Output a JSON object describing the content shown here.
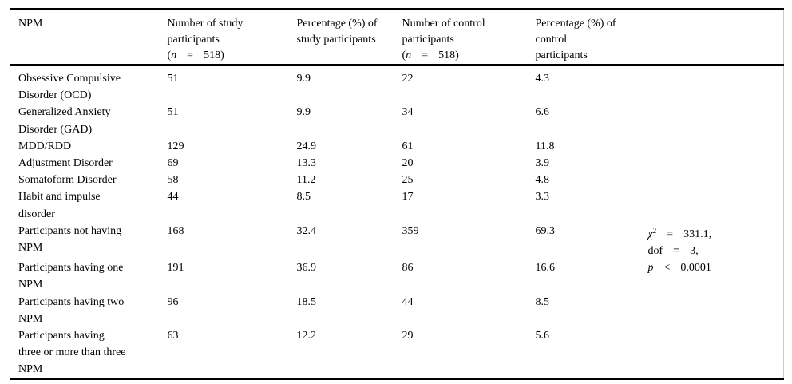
{
  "colors": {
    "background": "#ffffff",
    "text": "#000000",
    "rule": "#000000",
    "side_border": "#cccccc"
  },
  "table": {
    "columns": [
      {
        "id": "npm",
        "lines": [
          "NPM"
        ]
      },
      {
        "id": "study-n",
        "lines": [
          "Number of study",
          "participants",
          [
            {
              "t": "("
            },
            {
              "t": "n",
              "s": "i"
            },
            {
              "t": "=",
              "s": "gap"
            },
            {
              "t": "518)"
            }
          ]
        ]
      },
      {
        "id": "study-pct",
        "lines": [
          "Percentage (%) of",
          "study participants"
        ]
      },
      {
        "id": "control-n",
        "lines": [
          "Number of control",
          "participants",
          [
            {
              "t": "("
            },
            {
              "t": "n",
              "s": "i"
            },
            {
              "t": "=",
              "s": "gap"
            },
            {
              "t": "518)"
            }
          ]
        ]
      },
      {
        "id": "control-pct",
        "lines": [
          "Percentage (%) of",
          "control",
          "participants"
        ]
      },
      {
        "id": "stats",
        "lines": []
      }
    ],
    "rows": [
      {
        "cells": [
          [
            "Obsessive Compulsive",
            "Disorder (OCD)"
          ],
          "51",
          "9.9",
          "22",
          "4.3",
          []
        ]
      },
      {
        "cells": [
          [
            "Generalized Anxiety",
            "Disorder (GAD)"
          ],
          "51",
          "9.9",
          "34",
          "6.6",
          []
        ]
      },
      {
        "cells": [
          [
            "MDD/RDD"
          ],
          "129",
          "24.9",
          "61",
          "11.8",
          []
        ]
      },
      {
        "cells": [
          [
            "Adjustment Disorder"
          ],
          "69",
          "13.3",
          "20",
          "3.9",
          []
        ]
      },
      {
        "cells": [
          [
            "Somatoform Disorder"
          ],
          "58",
          "11.2",
          "25",
          "4.8",
          []
        ]
      },
      {
        "cells": [
          [
            "Habit and impulse",
            "disorder"
          ],
          "44",
          "8.5",
          "17",
          "3.3",
          []
        ]
      },
      {
        "cells": [
          [
            "Participants not having",
            "NPM"
          ],
          "168",
          "32.4",
          "359",
          "69.3",
          [
            [
              {
                "t": "χ",
                "s": "i",
                "n": "chi-symbol"
              },
              {
                "t": "2",
                "s": "sup",
                "n": "chi-exponent"
              },
              {
                "t": "=",
                "s": "gap"
              },
              {
                "t": "331.1,"
              }
            ],
            [
              {
                "t": "dof"
              },
              {
                "t": "=",
                "s": "gap"
              },
              {
                "t": "3,"
              }
            ]
          ]
        ]
      },
      {
        "cells": [
          [
            "Participants having one",
            "NPM"
          ],
          "191",
          "36.9",
          "86",
          "16.6",
          [
            [
              {
                "t": "p",
                "s": "i",
                "n": "p-symbol"
              },
              {
                "t": "<",
                "s": "gap"
              },
              {
                "t": "0.0001"
              }
            ]
          ]
        ]
      },
      {
        "cells": [
          [
            "Participants having two",
            "NPM"
          ],
          "96",
          "18.5",
          "44",
          "8.5",
          []
        ]
      },
      {
        "cells": [
          [
            "Participants having",
            "three or more than three",
            "NPM"
          ],
          "63",
          "12.2",
          "29",
          "5.6",
          []
        ]
      }
    ]
  }
}
